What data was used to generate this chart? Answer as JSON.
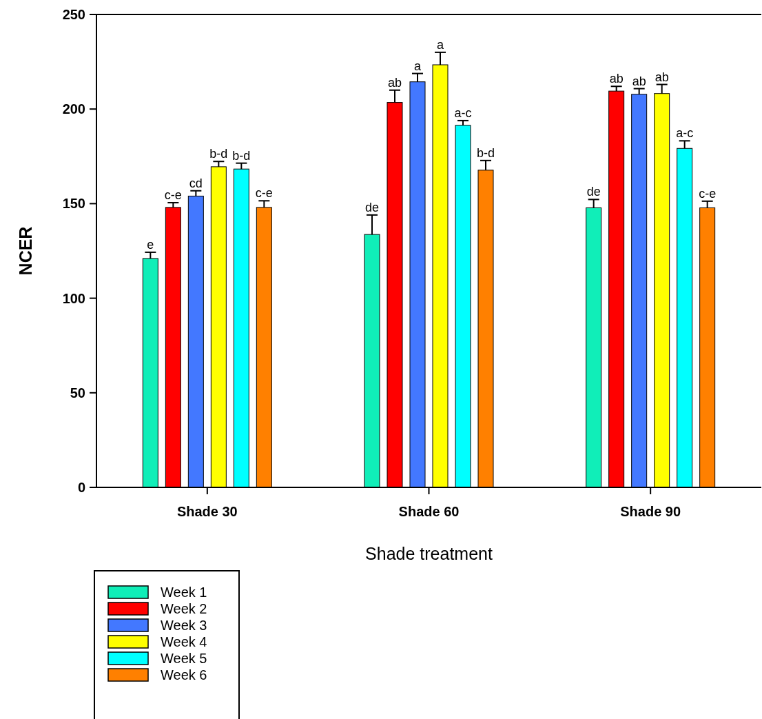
{
  "chart_data": {
    "type": "bar",
    "xlabel": "Shade treatment",
    "ylabel": "NCER",
    "categories": [
      "Shade 30",
      "Shade 60",
      "Shade 90"
    ],
    "ylim": [
      0,
      250
    ],
    "yticks": [
      0,
      50,
      100,
      150,
      200,
      250
    ],
    "grid": false,
    "legend": "bottom left",
    "series": [
      {
        "name": "Week 1",
        "color": "#10eeb8",
        "values": [
          121,
          133.7,
          147.8
        ],
        "errors": [
          3.3,
          10.3,
          4.4
        ],
        "value_labels": [
          "e",
          "de",
          "de"
        ]
      },
      {
        "name": "Week 2",
        "color": "#ff0000",
        "values": [
          148,
          203.5,
          209.5
        ],
        "errors": [
          2.5,
          6.5,
          2.5
        ],
        "value_labels": [
          "c-e",
          "ab",
          "ab"
        ]
      },
      {
        "name": "Week 3",
        "color": "#4378ff",
        "values": [
          154,
          214.4,
          207.8
        ],
        "errors": [
          2.8,
          4.4,
          3
        ],
        "value_labels": [
          "cd",
          "a",
          "ab"
        ]
      },
      {
        "name": "Week 4",
        "color": "#ffff00",
        "values": [
          169.5,
          223.4,
          208.2
        ],
        "errors": [
          2.8,
          6.6,
          4.8
        ],
        "value_labels": [
          "b-d",
          "a",
          "ab"
        ]
      },
      {
        "name": "Week 5",
        "color": "#00ffff",
        "values": [
          168.3,
          191.4,
          179.2
        ],
        "errors": [
          3.1,
          2.5,
          4
        ],
        "value_labels": [
          "b-d",
          "a-c",
          "a-c"
        ]
      },
      {
        "name": "Week 6",
        "color": "#ff8000",
        "values": [
          148,
          167.7,
          147.8
        ],
        "errors": [
          3.5,
          5.1,
          3.5
        ],
        "value_labels": [
          "c-e",
          "b-d",
          "c-e"
        ]
      }
    ]
  }
}
